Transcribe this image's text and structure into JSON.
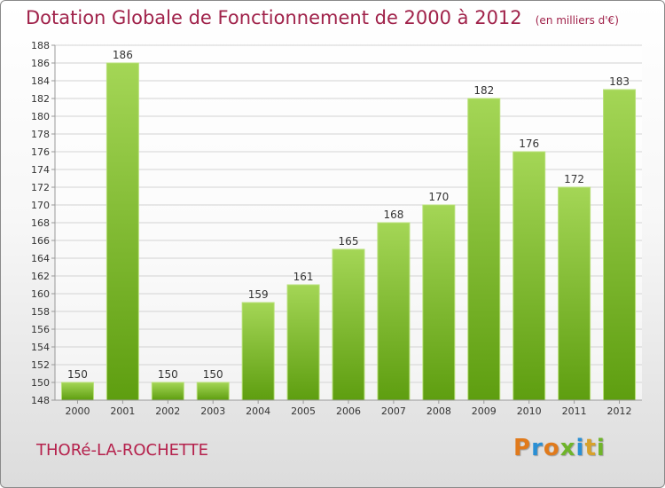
{
  "title": "Dotation Globale de Fonctionnement de 2000 à 2012",
  "unit": "(en milliers d'€)",
  "commune": "THORé-LA-ROCHETTE",
  "logo": {
    "letters": [
      "P",
      "r",
      "o",
      "x",
      "i",
      "t",
      "i"
    ],
    "colors": [
      "#e07a1c",
      "#2a8fd4",
      "#e07a1c",
      "#6fb42a",
      "#2a8fd4",
      "#d8a12a",
      "#6fb42a"
    ]
  },
  "chart_data": {
    "type": "bar",
    "title": "Dotation Globale de Fonctionnement de 2000 à 2012",
    "categories": [
      "2000",
      "2001",
      "2002",
      "2003",
      "2004",
      "2005",
      "2006",
      "2007",
      "2008",
      "2009",
      "2010",
      "2011",
      "2012"
    ],
    "values": [
      150,
      186,
      150,
      150,
      159,
      161,
      165,
      168,
      170,
      182,
      176,
      172,
      183
    ],
    "ylim": [
      148,
      188
    ],
    "yticks": [
      148,
      150,
      152,
      154,
      156,
      158,
      160,
      162,
      164,
      166,
      168,
      170,
      172,
      174,
      176,
      178,
      180,
      182,
      184,
      186,
      188
    ],
    "grid": true,
    "colors": {
      "bar_light": "#a4d656",
      "bar_dark": "#5e9e10",
      "grid": "#d3d3d3",
      "axis": "#999999"
    }
  }
}
